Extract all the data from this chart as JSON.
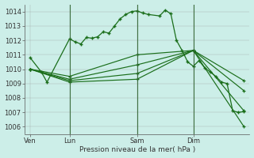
{
  "bg_color": "#cceee8",
  "grid_color": "#999999",
  "line_color": "#1a6e1a",
  "xlabel": "Pression niveau de la mer( hPa )",
  "ylim": [
    1005.5,
    1014.5
  ],
  "yticks": [
    1006,
    1007,
    1008,
    1009,
    1010,
    1011,
    1012,
    1013,
    1014
  ],
  "xtick_labels": [
    "Ven",
    "Lun",
    "Sam",
    "Dim"
  ],
  "xtick_positions": [
    0.5,
    4,
    10,
    15
  ],
  "vlines": [
    4,
    10,
    15
  ],
  "xlim": [
    0,
    20
  ],
  "line1_x": [
    0.5,
    1.5,
    2,
    4,
    4.5,
    5,
    5.5,
    6,
    6.5,
    7,
    7.5,
    8,
    8.5,
    9,
    9.5,
    10,
    10.5,
    11,
    12,
    12.5,
    13,
    13.5,
    14,
    14.5,
    15,
    15.5,
    16,
    16.5,
    17,
    17.5,
    18,
    18.5,
    19,
    19.5
  ],
  "line1_y": [
    1010.8,
    1009.8,
    1009.1,
    1012.1,
    1011.9,
    1011.75,
    1012.2,
    1012.15,
    1012.25,
    1012.6,
    1012.5,
    1013.0,
    1013.5,
    1013.8,
    1014.0,
    1014.05,
    1013.9,
    1013.8,
    1013.7,
    1014.1,
    1013.85,
    1012.0,
    1011.3,
    1010.5,
    1010.2,
    1010.6,
    1010.1,
    1009.8,
    1009.5,
    1009.1,
    1009.0,
    1007.1,
    1007.0,
    1007.05
  ],
  "line2_x": [
    0.5,
    4,
    10,
    15,
    19.5
  ],
  "line2_y": [
    1010.0,
    1009.5,
    1011.0,
    1011.3,
    1006.0
  ],
  "line3_x": [
    0.5,
    4,
    10,
    15,
    19.5
  ],
  "line3_y": [
    1010.0,
    1009.3,
    1010.3,
    1011.3,
    1007.1
  ],
  "line4_x": [
    0.5,
    4,
    10,
    15,
    19.5
  ],
  "line4_y": [
    1010.0,
    1009.2,
    1009.7,
    1011.3,
    1008.5
  ],
  "line5_x": [
    0.5,
    4,
    10,
    15,
    19.5
  ],
  "line5_y": [
    1010.0,
    1009.1,
    1009.3,
    1011.3,
    1009.2
  ]
}
